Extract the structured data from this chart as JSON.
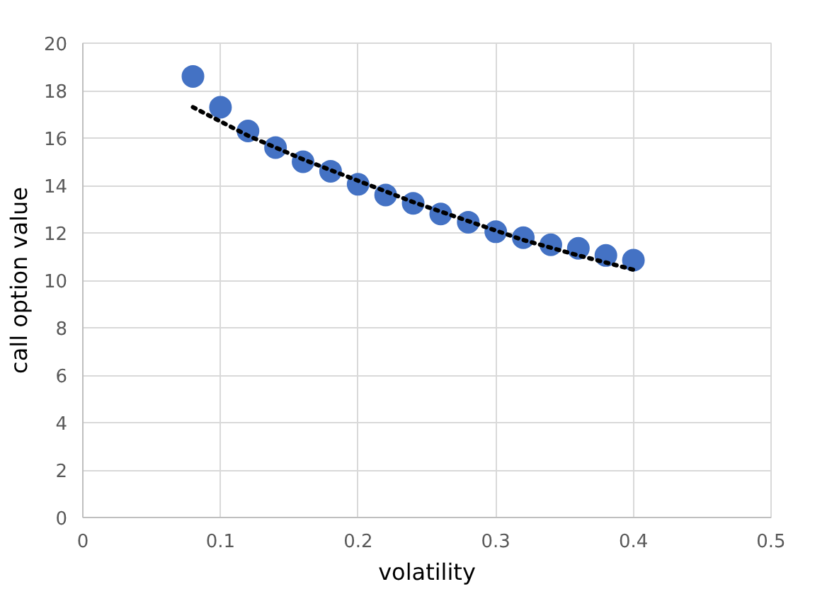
{
  "chart_data": {
    "type": "scatter",
    "xlabel": "volatility",
    "ylabel": "call option value",
    "x": [
      0.08,
      0.1,
      0.12,
      0.14,
      0.16,
      0.18,
      0.2,
      0.22,
      0.24,
      0.26,
      0.28,
      0.3,
      0.32,
      0.34,
      0.36,
      0.38,
      0.4
    ],
    "series": [
      {
        "color": "#4472c4",
        "marker": "circle",
        "values": [
          18.6,
          17.3,
          16.3,
          15.6,
          15.0,
          14.6,
          14.05,
          13.6,
          13.25,
          12.8,
          12.45,
          12.05,
          11.8,
          11.5,
          11.35,
          11.05,
          10.85
        ]
      },
      {
        "type": "line",
        "color": "#000000",
        "line_style": "dotted",
        "x": [
          0.08,
          0.12,
          0.16,
          0.2,
          0.24,
          0.28,
          0.32,
          0.36,
          0.4
        ],
        "values": [
          17.3,
          16.1,
          15.1,
          14.2,
          13.3,
          12.5,
          11.7,
          11.05,
          10.45
        ]
      }
    ],
    "xlim": [
      0,
      0.5
    ],
    "xticks": [
      0,
      0.1,
      0.2,
      0.3,
      0.4,
      0.5
    ],
    "ylim": [
      0,
      20
    ],
    "yticks": [
      0,
      2,
      4,
      6,
      8,
      10,
      12,
      14,
      16,
      18,
      20
    ],
    "grid": true
  }
}
